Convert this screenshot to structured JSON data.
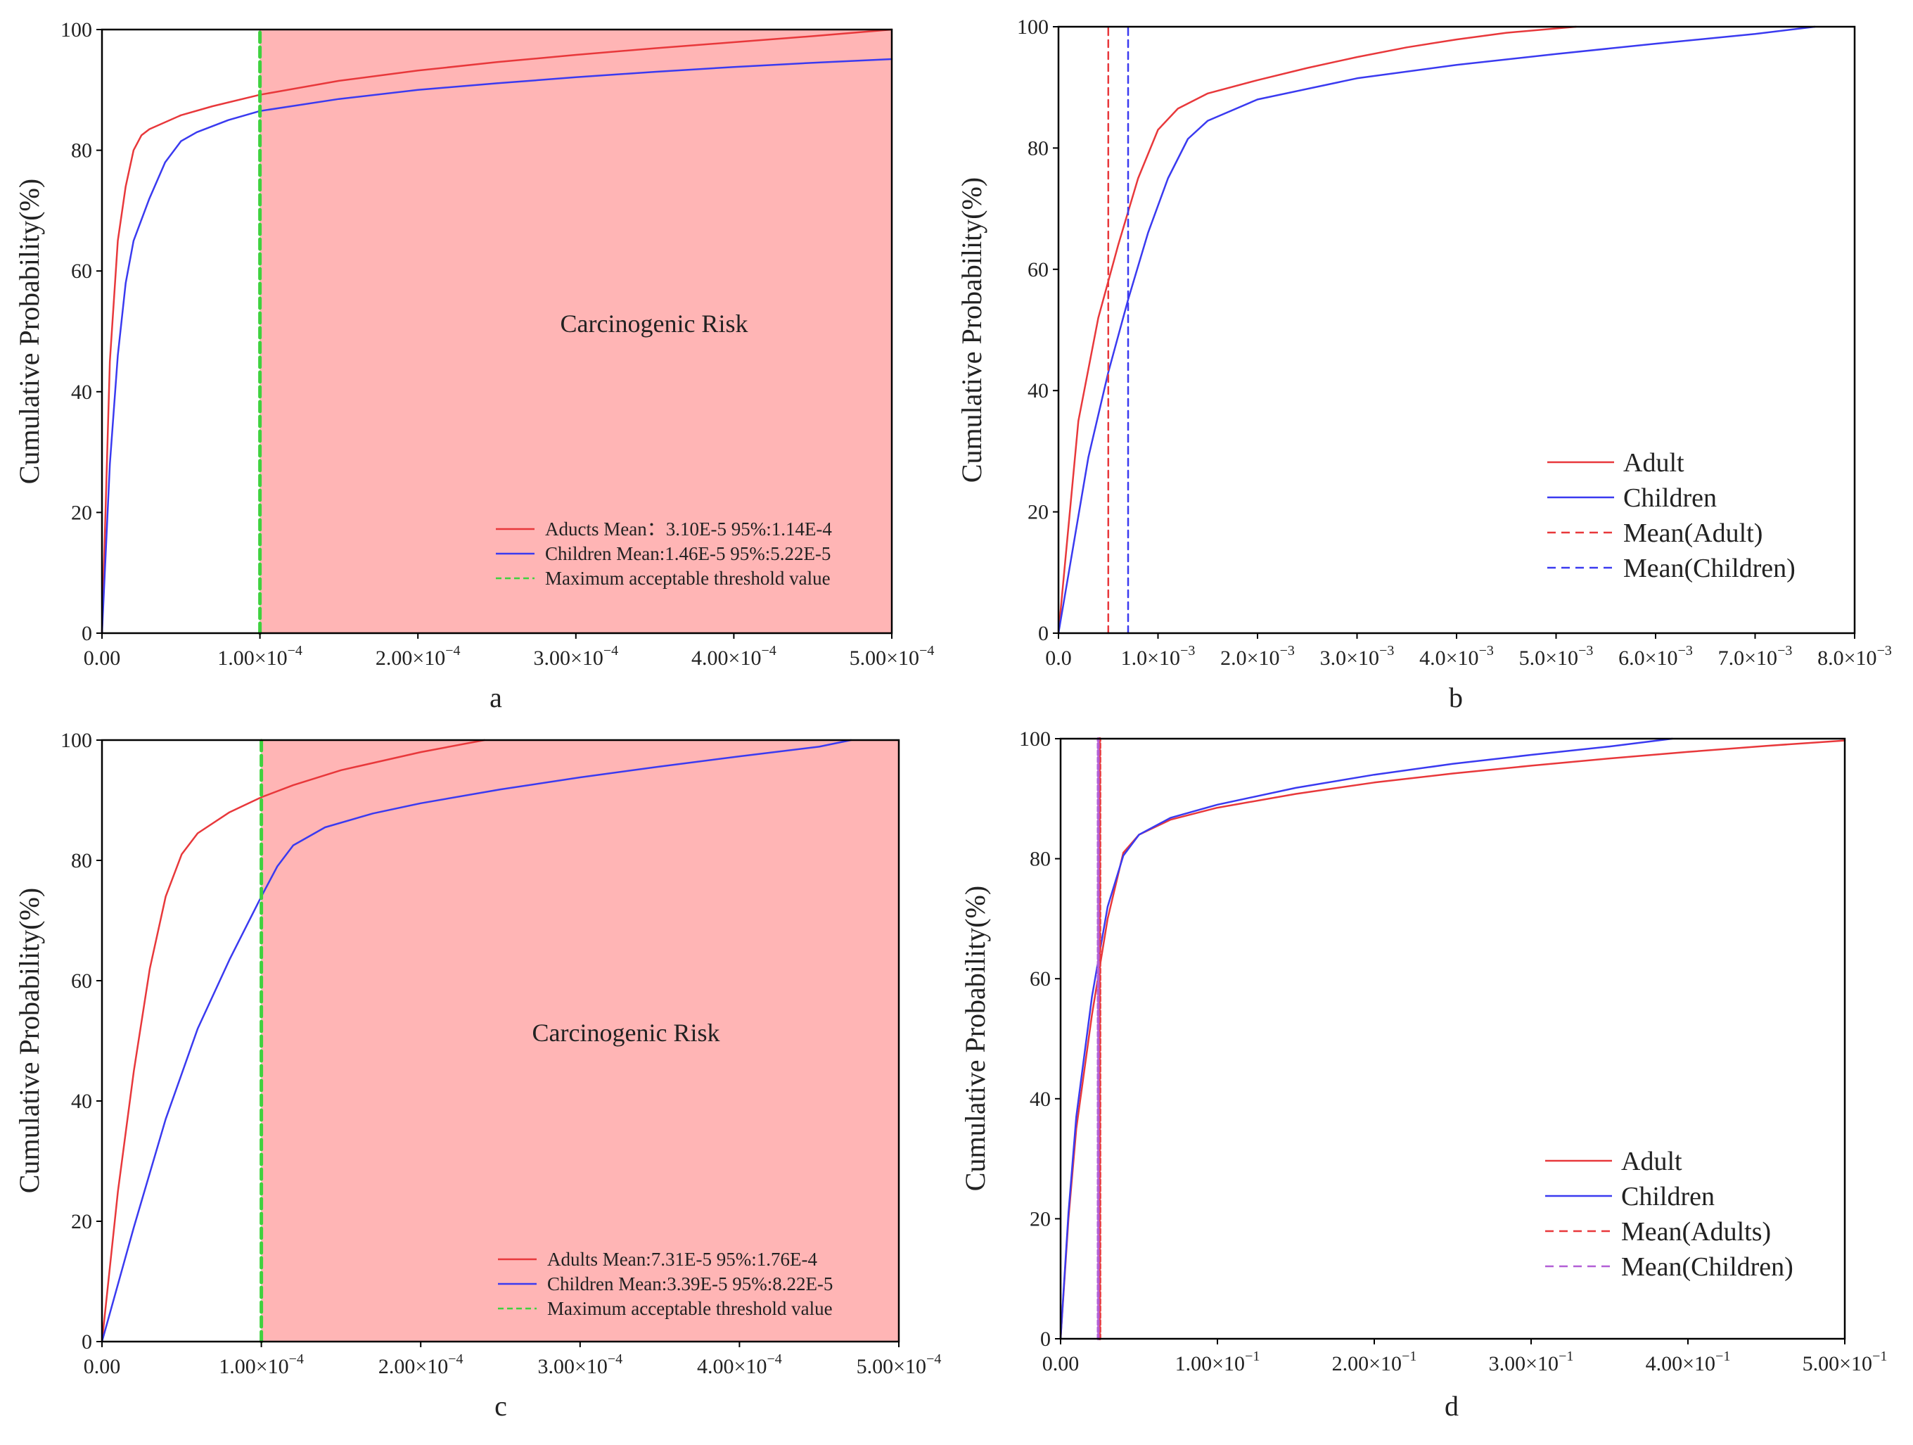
{
  "colors": {
    "adult": "#e8383b",
    "children": "#3a3af0",
    "threshold": "#3fd13f",
    "risk_region": "#ffb5b5",
    "mean_children_d": "#b35fd6"
  },
  "chart_data": [
    {
      "id": "a",
      "type": "line",
      "panel_label": "a",
      "ylabel": "Cumulative Probability(%)",
      "xlim": [
        0,
        0.0005
      ],
      "ylim": [
        0,
        100
      ],
      "xticks": [
        0,
        0.0001,
        0.0002,
        0.0003,
        0.0004,
        0.0005
      ],
      "xtick_labels": [
        "0.00",
        "1.00×10",
        "2.00×10",
        "3.00×10",
        "4.00×10",
        "5.00×10"
      ],
      "xtick_exps": [
        "",
        "−4",
        "−4",
        "−4",
        "−4",
        "−4"
      ],
      "yticks": [
        0,
        20,
        40,
        60,
        80,
        100
      ],
      "ytick_labels": [
        "0",
        "20",
        "40",
        "60",
        "80",
        "100"
      ],
      "shaded_region": {
        "x_from": 0.0001,
        "x_to": 0.0005,
        "label": "Carcinogenic Risk"
      },
      "threshold": 0.0001,
      "legend": [
        "Aducts Mean：3.10E-5 95%:1.14E-4",
        "Children Mean:1.46E-5 95%:5.22E-5",
        "Maximum acceptable threshold value"
      ],
      "series": [
        {
          "name": "Adult",
          "color_key": "adult",
          "dashed": false,
          "points": [
            [
              0,
              0
            ],
            [
              5e-06,
              45
            ],
            [
              1e-05,
              65
            ],
            [
              1.5e-05,
              74
            ],
            [
              2e-05,
              80
            ],
            [
              2.5e-05,
              82.5
            ],
            [
              3e-05,
              83.5
            ],
            [
              5e-05,
              85.8
            ],
            [
              7e-05,
              87.3
            ],
            [
              0.0001,
              89.2
            ],
            [
              0.00015,
              91.5
            ],
            [
              0.0002,
              93.2
            ],
            [
              0.00025,
              94.6
            ],
            [
              0.0003,
              95.8
            ],
            [
              0.00035,
              96.9
            ],
            [
              0.0004,
              97.9
            ],
            [
              0.00045,
              98.9
            ],
            [
              0.0005,
              100
            ]
          ]
        },
        {
          "name": "Children",
          "color_key": "children",
          "dashed": false,
          "points": [
            [
              0,
              0
            ],
            [
              5e-06,
              28
            ],
            [
              1e-05,
              46
            ],
            [
              1.5e-05,
              58
            ],
            [
              2e-05,
              65
            ],
            [
              3e-05,
              72
            ],
            [
              4e-05,
              78
            ],
            [
              5e-05,
              81.5
            ],
            [
              6e-05,
              83
            ],
            [
              8e-05,
              85
            ],
            [
              0.0001,
              86.5
            ],
            [
              0.00015,
              88.5
            ],
            [
              0.0002,
              90
            ],
            [
              0.00025,
              91.1
            ],
            [
              0.0003,
              92.1
            ],
            [
              0.00035,
              93
            ],
            [
              0.0004,
              93.8
            ],
            [
              0.00045,
              94.5
            ],
            [
              0.0005,
              95.1
            ]
          ]
        },
        {
          "name": "Maximum acceptable threshold value",
          "color_key": "threshold",
          "dashed": true,
          "points": [
            [
              0.0001,
              0
            ],
            [
              0.0001,
              100
            ]
          ]
        }
      ]
    },
    {
      "id": "b",
      "type": "line",
      "panel_label": "b",
      "ylabel": "Cumulative Probability(%)",
      "xlim": [
        0,
        0.008
      ],
      "ylim": [
        0,
        100
      ],
      "xticks": [
        0,
        0.001,
        0.002,
        0.003,
        0.004,
        0.005,
        0.006,
        0.007,
        0.008
      ],
      "xtick_labels": [
        "0.0",
        "1.0×10",
        "2.0×10",
        "3.0×10",
        "4.0×10",
        "5.0×10",
        "6.0×10",
        "7.0×10",
        "8.0×10"
      ],
      "xtick_exps": [
        "",
        "−3",
        "−3",
        "−3",
        "−3",
        "−3",
        "−3",
        "−3",
        "−3"
      ],
      "yticks": [
        0,
        20,
        40,
        60,
        80,
        100
      ],
      "ytick_labels": [
        "0",
        "20",
        "40",
        "60",
        "80",
        "100"
      ],
      "legend": [
        "Adult",
        "Children",
        "Mean(Adult)",
        "Mean(Children)"
      ],
      "series": [
        {
          "name": "Adult",
          "color_key": "adult",
          "dashed": false,
          "points": [
            [
              0,
              0
            ],
            [
              0.0002,
              35
            ],
            [
              0.0004,
              52
            ],
            [
              0.0006,
              64
            ],
            [
              0.0008,
              75
            ],
            [
              0.001,
              83
            ],
            [
              0.0012,
              86.5
            ],
            [
              0.0015,
              89
            ],
            [
              0.002,
              91.2
            ],
            [
              0.0025,
              93.2
            ],
            [
              0.003,
              95
            ],
            [
              0.0035,
              96.6
            ],
            [
              0.004,
              97.9
            ],
            [
              0.0045,
              99
            ],
            [
              0.0052,
              100
            ]
          ]
        },
        {
          "name": "Children",
          "color_key": "children",
          "dashed": false,
          "points": [
            [
              0,
              0
            ],
            [
              0.0003,
              29
            ],
            [
              0.0005,
              43
            ],
            [
              0.0007,
              55
            ],
            [
              0.0009,
              66
            ],
            [
              0.0011,
              75
            ],
            [
              0.0013,
              81.5
            ],
            [
              0.0015,
              84.5
            ],
            [
              0.002,
              88
            ],
            [
              0.003,
              91.5
            ],
            [
              0.004,
              93.7
            ],
            [
              0.005,
              95.5
            ],
            [
              0.006,
              97.2
            ],
            [
              0.007,
              98.8
            ],
            [
              0.0076,
              100
            ]
          ]
        },
        {
          "name": "Mean(Adult)",
          "color_key": "adult",
          "dashed": true,
          "points": [
            [
              0.0005,
              0
            ],
            [
              0.0005,
              100
            ]
          ]
        },
        {
          "name": "Mean(Children)",
          "color_key": "children",
          "dashed": true,
          "points": [
            [
              0.0007,
              0
            ],
            [
              0.0007,
              100
            ]
          ]
        }
      ]
    },
    {
      "id": "c",
      "type": "line",
      "panel_label": "c",
      "ylabel": "Cumulative Probability(%)",
      "xlim": [
        0,
        0.0005
      ],
      "ylim": [
        0,
        100
      ],
      "xticks": [
        0,
        0.0001,
        0.0002,
        0.0003,
        0.0004,
        0.0005
      ],
      "xtick_labels": [
        "0.00",
        "1.00×10",
        "2.00×10",
        "3.00×10",
        "4.00×10",
        "5.00×10"
      ],
      "xtick_exps": [
        "",
        "−4",
        "−4",
        "−4",
        "−4",
        "−4"
      ],
      "yticks": [
        0,
        20,
        40,
        60,
        80,
        100
      ],
      "ytick_labels": [
        "0",
        "20",
        "40",
        "60",
        "80",
        "100"
      ],
      "shaded_region": {
        "x_from": 0.0001,
        "x_to": 0.0005,
        "label": "Carcinogenic Risk"
      },
      "threshold": 0.0001,
      "legend": [
        "Adults Mean:7.31E-5 95%:1.76E-4",
        "Children Mean:3.39E-5 95%:8.22E-5",
        "Maximum acceptable threshold value"
      ],
      "series": [
        {
          "name": "Adult",
          "color_key": "adult",
          "dashed": false,
          "points": [
            [
              0,
              0
            ],
            [
              1e-05,
              25
            ],
            [
              2e-05,
              45
            ],
            [
              3e-05,
              62
            ],
            [
              4e-05,
              74
            ],
            [
              5e-05,
              81
            ],
            [
              6e-05,
              84.5
            ],
            [
              8e-05,
              88
            ],
            [
              0.0001,
              90.5
            ],
            [
              0.00012,
              92.5
            ],
            [
              0.00015,
              95
            ],
            [
              0.0002,
              98
            ],
            [
              0.00024,
              100
            ]
          ]
        },
        {
          "name": "Children",
          "color_key": "children",
          "dashed": false,
          "points": [
            [
              0,
              0
            ],
            [
              2e-05,
              19
            ],
            [
              4e-05,
              37
            ],
            [
              6e-05,
              52
            ],
            [
              8e-05,
              63.5
            ],
            [
              0.0001,
              74
            ],
            [
              0.00011,
              79
            ],
            [
              0.00012,
              82.5
            ],
            [
              0.00014,
              85.5
            ],
            [
              0.00017,
              87.8
            ],
            [
              0.0002,
              89.5
            ],
            [
              0.00025,
              91.8
            ],
            [
              0.0003,
              93.8
            ],
            [
              0.00035,
              95.6
            ],
            [
              0.0004,
              97.3
            ],
            [
              0.00045,
              98.9
            ],
            [
              0.00047,
              100
            ]
          ]
        },
        {
          "name": "Maximum acceptable threshold value",
          "color_key": "threshold",
          "dashed": true,
          "points": [
            [
              0.0001,
              0
            ],
            [
              0.0001,
              100
            ]
          ]
        }
      ]
    },
    {
      "id": "d",
      "type": "line",
      "panel_label": "d",
      "ylabel": "Cumulative Probability(%)",
      "xlim": [
        0,
        0.5
      ],
      "ylim": [
        0,
        100
      ],
      "xticks": [
        0,
        0.1,
        0.2,
        0.3,
        0.4,
        0.5
      ],
      "xtick_labels": [
        "0.00",
        "1.00×10",
        "2.00×10",
        "3.00×10",
        "4.00×10",
        "5.00×10"
      ],
      "xtick_exps": [
        "",
        "−1",
        "−1",
        "−1",
        "−1",
        "−1"
      ],
      "yticks": [
        0,
        20,
        40,
        60,
        80,
        100
      ],
      "ytick_labels": [
        "0",
        "20",
        "40",
        "60",
        "80",
        "100"
      ],
      "legend": [
        "Adult",
        "Children",
        "Mean(Adults)",
        "Mean(Children)"
      ],
      "series": [
        {
          "name": "Adult",
          "color_key": "adult",
          "dashed": false,
          "points": [
            [
              0,
              0
            ],
            [
              0.005,
              20
            ],
            [
              0.01,
              35
            ],
            [
              0.02,
              54
            ],
            [
              0.03,
              70
            ],
            [
              0.04,
              81
            ],
            [
              0.05,
              84
            ],
            [
              0.07,
              86.5
            ],
            [
              0.1,
              88.5
            ],
            [
              0.15,
              90.8
            ],
            [
              0.2,
              92.7
            ],
            [
              0.25,
              94.2
            ],
            [
              0.3,
              95.5
            ],
            [
              0.35,
              96.7
            ],
            [
              0.4,
              97.8
            ],
            [
              0.45,
              98.8
            ],
            [
              0.5,
              99.7
            ]
          ]
        },
        {
          "name": "Children",
          "color_key": "children",
          "dashed": false,
          "points": [
            [
              0,
              0
            ],
            [
              0.005,
              21
            ],
            [
              0.01,
              37
            ],
            [
              0.02,
              57
            ],
            [
              0.03,
              72
            ],
            [
              0.04,
              80.5
            ],
            [
              0.05,
              84
            ],
            [
              0.07,
              86.8
            ],
            [
              0.1,
              89
            ],
            [
              0.15,
              91.8
            ],
            [
              0.2,
              94
            ],
            [
              0.25,
              95.8
            ],
            [
              0.3,
              97.3
            ],
            [
              0.35,
              98.7
            ],
            [
              0.39,
              100
            ]
          ]
        },
        {
          "name": "Mean(Adults)",
          "color_key": "adult",
          "dashed": true,
          "points": [
            [
              0.025,
              0
            ],
            [
              0.025,
              100
            ]
          ]
        },
        {
          "name": "Mean(Children)",
          "color_key": "children",
          "dashed": true,
          "points": [
            [
              0.024,
              0
            ],
            [
              0.024,
              100
            ]
          ]
        }
      ]
    }
  ]
}
